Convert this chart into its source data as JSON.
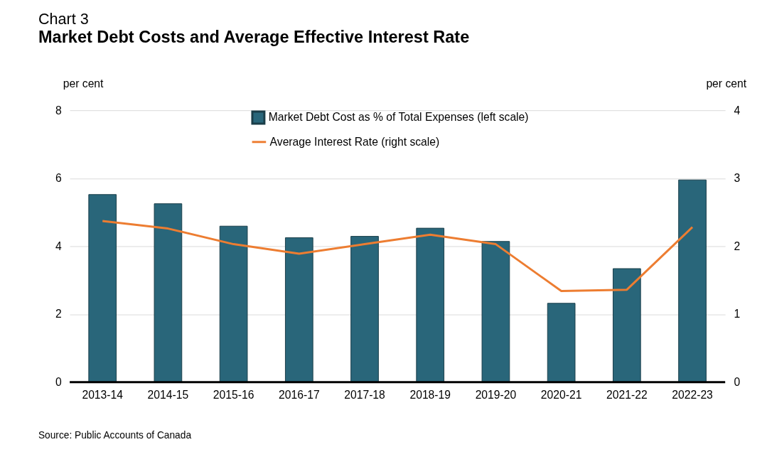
{
  "chart_data": {
    "type": "bar",
    "title": "Market Debt Costs and Average Effective Interest Rate",
    "subtitle": "Chart 3",
    "ylabel": "per cent",
    "y2label": "per cent",
    "categories": [
      "2013-14",
      "2014-15",
      "2015-16",
      "2016-17",
      "2017-18",
      "2018-19",
      "2019-20",
      "2020-21",
      "2021-22",
      "2022-23"
    ],
    "series": [
      {
        "name": "Market Debt Cost as % of Total Expenses (left scale)",
        "color": "#29667a",
        "values": [
          5.52,
          5.25,
          4.59,
          4.25,
          4.29,
          4.53,
          4.14,
          2.32,
          3.34,
          5.95
        ]
      },
      {
        "name": "Average Interest Rate (right scale)",
        "color": "#ed7d31",
        "type": "line",
        "axis": "y2",
        "values": [
          2.37,
          2.26,
          2.03,
          1.89,
          2.03,
          2.17,
          2.03,
          1.34,
          1.36,
          2.28
        ]
      }
    ],
    "ylim": [
      0,
      8
    ],
    "yticks": [
      0,
      2,
      4,
      6,
      8
    ],
    "y2lim": [
      0,
      4
    ],
    "y2ticks": [
      0,
      1,
      2,
      3,
      4
    ],
    "grid": "y",
    "legend": "top",
    "annotations": [
      "Source: Public Accounts of Canada"
    ]
  }
}
